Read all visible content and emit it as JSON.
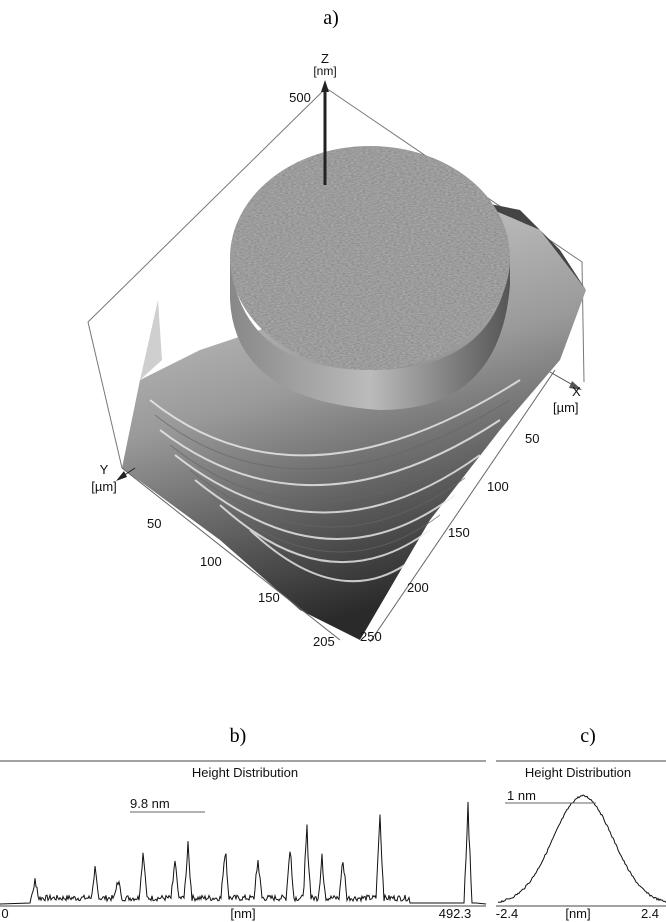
{
  "panel_a": {
    "label": "a)",
    "z_axis": {
      "name": "Z",
      "unit": "[nm]",
      "ticks": [
        "500"
      ]
    },
    "x_axis": {
      "name": "X",
      "unit": "[µm]",
      "ticks": [
        "50",
        "100",
        "150",
        "200",
        "250"
      ]
    },
    "y_axis": {
      "name": "Y",
      "unit": "[µm]",
      "ticks": [
        "50",
        "100",
        "150",
        "205"
      ]
    }
  },
  "panel_b": {
    "label": "b)",
    "title": "Height Distribution",
    "marker": "9.8 nm",
    "x_labels": [
      "0",
      "[nm]",
      "492.3"
    ]
  },
  "panel_c": {
    "label": "c)",
    "title": "Height Distribution",
    "marker": "1 nm",
    "x_labels": [
      "-2.4",
      "[nm]",
      "2.4"
    ]
  }
}
